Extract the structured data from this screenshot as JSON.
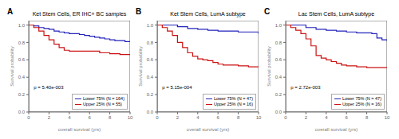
{
  "chart_data": [
    {
      "type": "step",
      "title": "Ket Stem Cells, ER IHC+ BC samples",
      "annotations": [
        "A",
        "p = 5.40e-003"
      ],
      "xlabel": "overall survival (yrs)",
      "ylabel": "Survival probability",
      "xlim": [
        0,
        10
      ],
      "ylim": [
        0,
        1.05
      ],
      "xticks": [
        0,
        2,
        4,
        6,
        8,
        10
      ],
      "yticks": [
        {
          "value": 0,
          "label": "0.0"
        },
        0.2,
        0.4,
        0.6,
        0.8,
        {
          "value": 1.0,
          "label": "1.0"
        }
      ],
      "grid": false,
      "legend": "lower right",
      "series": [
        {
          "name": "Lower 75% (N = 164)",
          "color": "#2222bb",
          "x": [
            0,
            0.5,
            1,
            1.5,
            2,
            2.5,
            3,
            3.5,
            4,
            4.5,
            5,
            5.5,
            6,
            6.5,
            7,
            7.5,
            8,
            8.5,
            9,
            9.5,
            10
          ],
          "values": [
            1.0,
            0.99,
            0.97,
            0.96,
            0.95,
            0.93,
            0.92,
            0.91,
            0.9,
            0.9,
            0.89,
            0.88,
            0.87,
            0.86,
            0.85,
            0.84,
            0.83,
            0.82,
            0.82,
            0.81,
            0.81
          ]
        },
        {
          "name": "Upper 25% (N = 55)",
          "color": "#cc1111",
          "x": [
            0,
            0.5,
            1,
            1.5,
            2,
            2.5,
            3,
            3.5,
            4,
            5,
            6,
            7,
            8,
            9,
            10
          ],
          "values": [
            1.0,
            0.97,
            0.93,
            0.88,
            0.83,
            0.78,
            0.74,
            0.71,
            0.7,
            0.7,
            0.7,
            0.68,
            0.67,
            0.66,
            0.66
          ]
        }
      ]
    },
    {
      "type": "step",
      "title": "Ket Stem Cells, LumA subtype",
      "annotations": [
        "B",
        "p = 5.15e-004"
      ],
      "xlabel": "overall survival (yrs)",
      "ylabel": "Survival probability",
      "xlim": [
        0,
        10
      ],
      "ylim": [
        0,
        1.05
      ],
      "xticks": [
        0,
        2,
        4,
        6,
        8,
        10
      ],
      "yticks": [
        {
          "value": 0,
          "label": "0.0"
        },
        0.2,
        0.4,
        0.6,
        0.8,
        {
          "value": 1.0,
          "label": "1.0"
        }
      ],
      "grid": false,
      "legend": "lower right",
      "series": [
        {
          "name": "Lower 75% (N = 47)",
          "color": "#2222bb",
          "x": [
            0,
            1,
            2,
            3,
            4,
            5,
            6,
            7,
            8,
            9,
            10
          ],
          "values": [
            1.0,
            1.0,
            0.98,
            0.96,
            0.95,
            0.94,
            0.93,
            0.93,
            0.92,
            0.92,
            0.9
          ]
        },
        {
          "name": "Upper 25% (N = 16)",
          "color": "#cc1111",
          "x": [
            0,
            0.5,
            1,
            1.5,
            2,
            2.5,
            3,
            3.5,
            4,
            4.5,
            5,
            5.5,
            6,
            6.5,
            7,
            8,
            9,
            10
          ],
          "values": [
            1.0,
            0.97,
            0.93,
            0.88,
            0.8,
            0.74,
            0.68,
            0.64,
            0.61,
            0.6,
            0.59,
            0.57,
            0.55,
            0.54,
            0.54,
            0.53,
            0.52,
            0.52
          ]
        }
      ]
    },
    {
      "type": "step",
      "title": "Lac Stem Cells, LumA subtype",
      "annotations": [
        "C",
        "p = 2.72e-003"
      ],
      "xlabel": "overall survival (yrs)",
      "ylabel": "Survival probability",
      "xlim": [
        0,
        10
      ],
      "ylim": [
        0,
        1.05
      ],
      "xticks": [
        0,
        2,
        4,
        6,
        8,
        10
      ],
      "yticks": [
        {
          "value": 0,
          "label": "0.0"
        },
        0.2,
        0.4,
        0.6,
        0.8,
        {
          "value": 1.0,
          "label": "1.0"
        }
      ],
      "grid": false,
      "legend": "lower right",
      "series": [
        {
          "name": "Lower 75% (N = 47)",
          "color": "#2222bb",
          "x": [
            0,
            1,
            2,
            3,
            4,
            5,
            6,
            7,
            8,
            8.5,
            9,
            9.5,
            10
          ],
          "values": [
            1.0,
            1.0,
            0.97,
            0.95,
            0.94,
            0.93,
            0.92,
            0.91,
            0.91,
            0.9,
            0.85,
            0.83,
            0.82
          ]
        },
        {
          "name": "Upper 25% (N = 16)",
          "color": "#cc1111",
          "x": [
            0,
            0.5,
            1,
            1.5,
            2,
            2.5,
            3,
            3.5,
            4,
            4.5,
            5,
            5.5,
            6,
            7,
            8,
            9,
            10
          ],
          "values": [
            1.0,
            0.97,
            0.94,
            0.9,
            0.84,
            0.76,
            0.65,
            0.62,
            0.6,
            0.58,
            0.56,
            0.54,
            0.53,
            0.52,
            0.51,
            0.51,
            0.51
          ]
        }
      ]
    }
  ]
}
